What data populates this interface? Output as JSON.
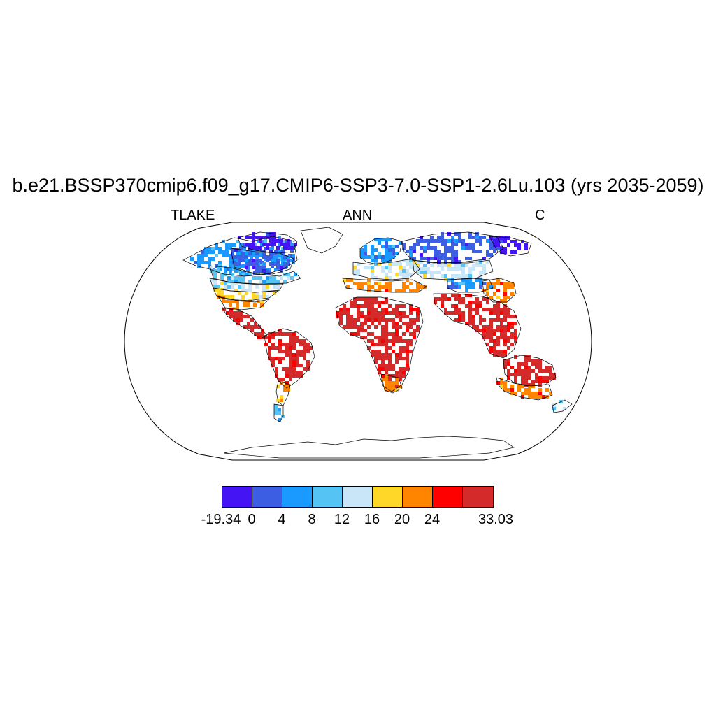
{
  "title": "b.e21.BSSP370cmip6.f09_g17.CMIP6-SSP3-7.0-SSP1-2.6Lu.103 (yrs 2035-2059)",
  "left_label": "TLAKE",
  "center_label": "ANN",
  "right_label": "C",
  "colorbar": {
    "colors": [
      "#4514f5",
      "#3b5ee3",
      "#1a99ff",
      "#55c4f5",
      "#c8e6f7",
      "#ffd728",
      "#ff8500",
      "#ff0000",
      "#d42a2a"
    ],
    "labels": [
      "-19.34",
      "0",
      "4",
      "8",
      "12",
      "16",
      "20",
      "24",
      "33.03"
    ]
  },
  "map": {
    "projection": "Robinson",
    "field_regions": [
      {
        "name": "arctic-canada",
        "level": 0
      },
      {
        "name": "north-canada",
        "level": 1
      },
      {
        "name": "alaska-central-canada",
        "level": 2
      },
      {
        "name": "southern-canada",
        "level": 3
      },
      {
        "name": "northern-us",
        "level": 4
      },
      {
        "name": "central-us",
        "level": 5
      },
      {
        "name": "southern-us",
        "level": 6
      },
      {
        "name": "central-america",
        "level": 8
      },
      {
        "name": "south-america-north",
        "level": 8
      },
      {
        "name": "south-america-south",
        "level": 6
      },
      {
        "name": "patagonia",
        "level": 3
      },
      {
        "name": "scandinavia",
        "level": 2
      },
      {
        "name": "europe",
        "level": 4
      },
      {
        "name": "mediterranean",
        "level": 6
      },
      {
        "name": "siberia",
        "level": 1
      },
      {
        "name": "east-siberia",
        "level": 0
      },
      {
        "name": "central-asia",
        "level": 4
      },
      {
        "name": "tibet",
        "level": 2
      },
      {
        "name": "africa",
        "level": 8
      },
      {
        "name": "south-africa",
        "level": 6
      },
      {
        "name": "india-se-asia",
        "level": 8
      },
      {
        "name": "china",
        "level": 6
      },
      {
        "name": "australia-north",
        "level": 8
      },
      {
        "name": "australia-south",
        "level": 6
      },
      {
        "name": "new-zealand",
        "level": 3
      }
    ]
  }
}
